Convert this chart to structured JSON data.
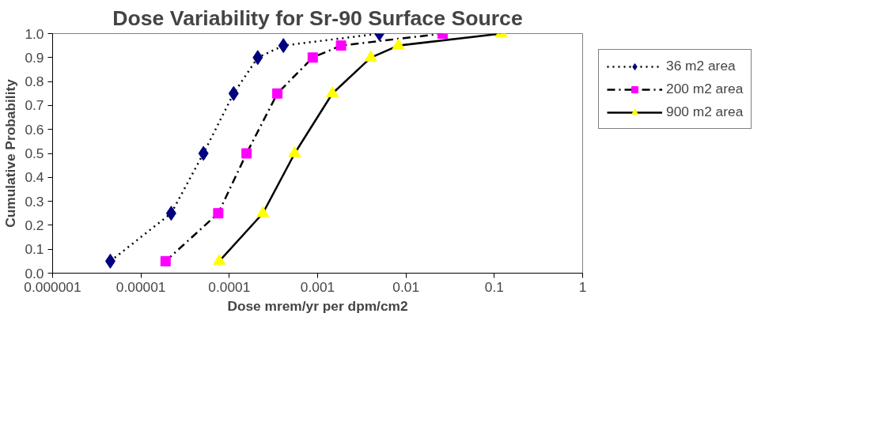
{
  "chart_data": {
    "type": "line",
    "title": "Dose Variability for Sr-90 Surface Source",
    "xlabel": "Dose mrem/yr per dpm/cm2",
    "ylabel": "Cumulative Probability",
    "log": "x",
    "xlim": [
      1e-06,
      1
    ],
    "xticks": [
      {
        "value": 1e-06,
        "label": "0.000001"
      },
      {
        "value": 1e-05,
        "label": "0.00001"
      },
      {
        "value": 0.0001,
        "label": "0.0001"
      },
      {
        "value": 0.001,
        "label": "0.001"
      },
      {
        "value": 0.01,
        "label": "0.01"
      },
      {
        "value": 0.1,
        "label": "0.1"
      },
      1
    ],
    "ylim": [
      0,
      1
    ],
    "yticks": [
      {
        "value": 0,
        "label": "0.0"
      },
      {
        "value": 0.1,
        "label": "0.1"
      },
      {
        "value": 0.2,
        "label": "0.2"
      },
      {
        "value": 0.3,
        "label": "0.3"
      },
      {
        "value": 0.4,
        "label": "0.4"
      },
      {
        "value": 0.5,
        "label": "0.5"
      },
      {
        "value": 0.6,
        "label": "0.6"
      },
      {
        "value": 0.7,
        "label": "0.7"
      },
      {
        "value": 0.8,
        "label": "0.8"
      },
      {
        "value": 0.9,
        "label": "0.9"
      },
      {
        "value": 1,
        "label": "1.0"
      }
    ],
    "grid": false,
    "legend": "right",
    "series": [
      {
        "name": "36 m2 area",
        "color": "#000080",
        "marker": "diamond",
        "line_style": "dotted",
        "x": [
          4.5e-06,
          2.2e-05,
          5.1e-05,
          0.000112,
          0.00021,
          0.00041,
          0.005
        ],
        "values": [
          0.05,
          0.25,
          0.5,
          0.75,
          0.9,
          0.95,
          1.0
        ]
      },
      {
        "name": "200 m2 area",
        "color": "#ff00ff",
        "marker": "square",
        "line_style": "dashdot",
        "x": [
          1.9e-05,
          7.5e-05,
          0.000157,
          0.00035,
          0.00088,
          0.00184,
          0.026
        ],
        "values": [
          0.05,
          0.25,
          0.5,
          0.75,
          0.9,
          0.95,
          1.0
        ]
      },
      {
        "name": "900 m2 area",
        "color": "#ffff00",
        "marker": "triangle",
        "line_style": "solid",
        "x": [
          7.7e-05,
          0.00024,
          0.00055,
          0.00147,
          0.004,
          0.0082,
          0.12
        ],
        "values": [
          0.05,
          0.25,
          0.5,
          0.75,
          0.9,
          0.95,
          1.0
        ]
      }
    ]
  }
}
